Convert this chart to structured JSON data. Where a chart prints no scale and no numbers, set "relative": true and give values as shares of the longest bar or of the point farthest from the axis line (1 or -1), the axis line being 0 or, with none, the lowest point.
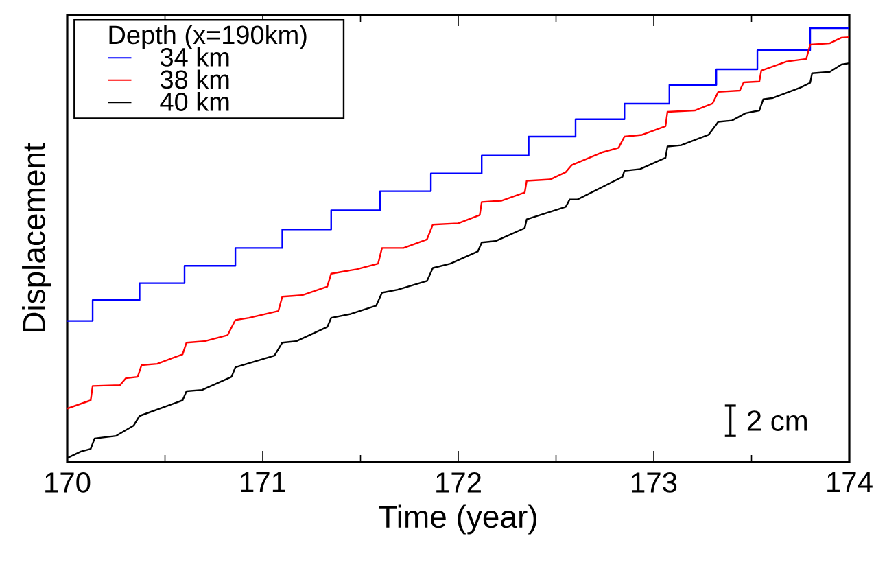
{
  "chart_data": {
    "type": "line",
    "relative": true,
    "xlabel": "Time (year)",
    "ylabel": "Displacement",
    "legend_title": "Depth (x=190km)",
    "legend": "top left",
    "xlim": [
      170,
      174
    ],
    "xticks": [
      170,
      171,
      172,
      173,
      174
    ],
    "annotations": [
      "2 cm"
    ],
    "series": [
      {
        "name": "34 km",
        "color": "#0000ff",
        "type": "step",
        "x": [
          170,
          170.13,
          170.37,
          170.6,
          170.86,
          171.1,
          171.35,
          171.6,
          171.86,
          172.12,
          172.36,
          172.6,
          172.85,
          173.08,
          173.32,
          173.53,
          173.8,
          174
        ],
        "values": [
          0.325,
          0.373,
          0.412,
          0.452,
          0.493,
          0.536,
          0.58,
          0.624,
          0.665,
          0.706,
          0.75,
          0.79,
          0.826,
          0.869,
          0.905,
          0.949,
          1.0,
          1.0
        ]
      },
      {
        "name": "38 km",
        "color": "#ff0000",
        "x": [
          170,
          170.12,
          170.13,
          170.27,
          170.3,
          170.36,
          170.38,
          170.46,
          170.59,
          170.61,
          170.7,
          170.82,
          170.86,
          170.93,
          171.08,
          171.1,
          171.2,
          171.33,
          171.35,
          171.48,
          171.59,
          171.61,
          171.72,
          171.84,
          171.87,
          172.0,
          172.11,
          172.12,
          172.22,
          172.34,
          172.35,
          172.47,
          172.55,
          172.58,
          172.74,
          172.82,
          172.85,
          172.94,
          173.06,
          173.07,
          173.21,
          173.3,
          173.33,
          173.44,
          173.46,
          173.54,
          173.55,
          173.68,
          173.78,
          173.8,
          173.9,
          173.96,
          174
        ],
        "values": [
          0.123,
          0.142,
          0.175,
          0.177,
          0.193,
          0.196,
          0.223,
          0.226,
          0.248,
          0.275,
          0.278,
          0.292,
          0.327,
          0.332,
          0.348,
          0.381,
          0.384,
          0.404,
          0.434,
          0.444,
          0.457,
          0.493,
          0.493,
          0.513,
          0.547,
          0.55,
          0.569,
          0.599,
          0.602,
          0.621,
          0.648,
          0.651,
          0.668,
          0.684,
          0.714,
          0.724,
          0.75,
          0.754,
          0.774,
          0.807,
          0.81,
          0.826,
          0.853,
          0.856,
          0.875,
          0.877,
          0.902,
          0.923,
          0.929,
          0.962,
          0.965,
          0.978,
          0.979
        ]
      },
      {
        "name": "40 km",
        "color": "#000000",
        "x": [
          170,
          170.07,
          170.12,
          170.14,
          170.25,
          170.34,
          170.37,
          170.59,
          170.61,
          170.69,
          170.84,
          170.86,
          171.06,
          171.1,
          171.17,
          171.33,
          171.35,
          171.45,
          171.58,
          171.61,
          171.69,
          171.84,
          171.87,
          171.96,
          172.1,
          172.12,
          172.19,
          172.34,
          172.35,
          172.55,
          172.57,
          172.61,
          172.84,
          172.85,
          172.93,
          173.06,
          173.07,
          173.14,
          173.28,
          173.33,
          173.4,
          173.47,
          173.54,
          173.56,
          173.61,
          173.75,
          173.8,
          173.81,
          173.9,
          173.96,
          174
        ],
        "values": [
          0.009,
          0.024,
          0.03,
          0.054,
          0.06,
          0.084,
          0.106,
          0.142,
          0.163,
          0.166,
          0.196,
          0.218,
          0.245,
          0.275,
          0.278,
          0.311,
          0.332,
          0.341,
          0.36,
          0.39,
          0.397,
          0.417,
          0.447,
          0.457,
          0.485,
          0.506,
          0.509,
          0.539,
          0.559,
          0.588,
          0.605,
          0.605,
          0.657,
          0.671,
          0.675,
          0.701,
          0.727,
          0.73,
          0.754,
          0.784,
          0.787,
          0.804,
          0.81,
          0.836,
          0.839,
          0.863,
          0.874,
          0.896,
          0.899,
          0.916,
          0.919
        ]
      }
    ]
  }
}
